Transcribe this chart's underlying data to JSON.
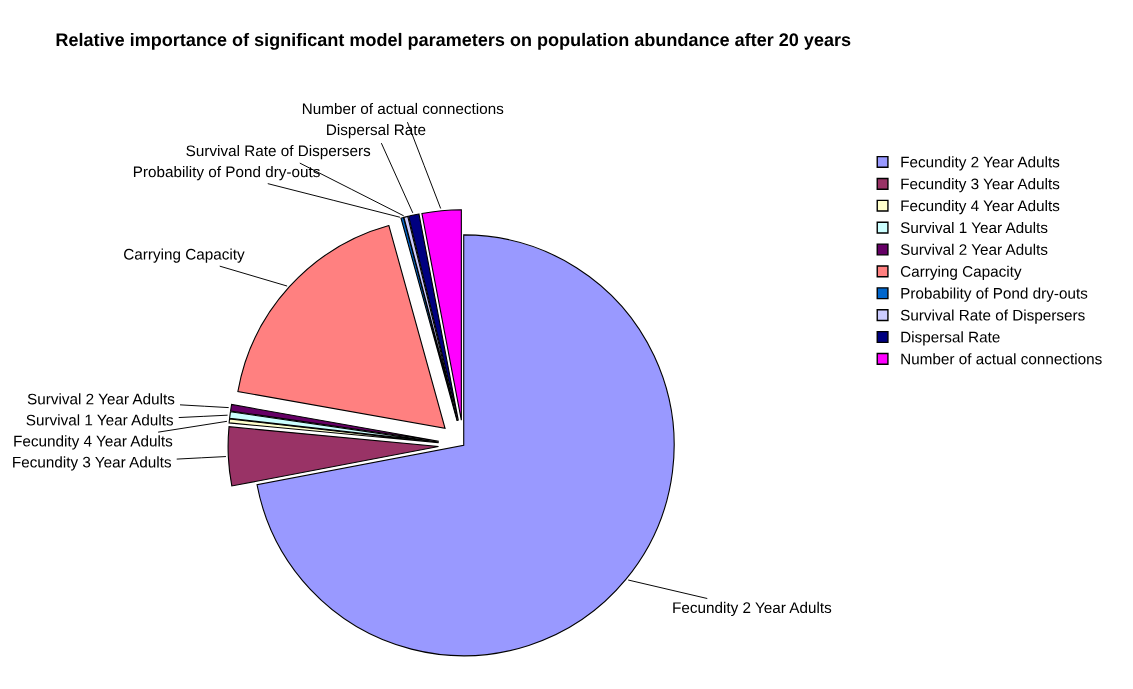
{
  "chart_data": {
    "type": "pie",
    "title": "Relative importance of significant model parameters on population abundance after 20 years",
    "categories": [
      "Fecundity 2 Year Adults",
      "Fecundity 3 Year Adults",
      "Fecundity 4 Year Adults",
      "Survival 1 Year Adults",
      "Survival 2 Year Adults",
      "Carrying Capacity",
      "Probability of Pond dry-outs",
      "Survival Rate of Dispersers",
      "Dispersal Rate",
      "Number of actual connections"
    ],
    "values": [
      72.0,
      4.5,
      0.3,
      0.5,
      0.5,
      17.9,
      0.2,
      0.3,
      0.8,
      3.0
    ],
    "colors": [
      "#9999ff",
      "#993366",
      "#ffffcc",
      "#ccffff",
      "#660066",
      "#ff8080",
      "#0066cc",
      "#ccccff",
      "#000080",
      "#ff00ff"
    ],
    "legend": "right"
  }
}
